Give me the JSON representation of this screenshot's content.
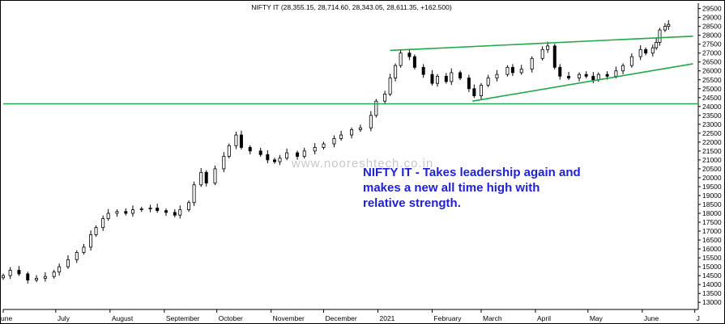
{
  "chart_data": {
    "type": "candlestick",
    "title": "NIFTY IT (28,355.15, 28,714.60, 28,343.05, 28,611.35, +162.500)",
    "watermark": "www.nooreshtech.co.in",
    "annotation_lines": [
      "NIFTY IT - Takes leadership again and",
      "makes a new all time high with",
      "relative strength."
    ],
    "annotation_color": "#1f1fd6",
    "trendline_color": "#22a84a",
    "candle_up_color": "#ffffff",
    "candle_down_color": "#000000",
    "ylim": [
      12600,
      29800
    ],
    "y_ticks": [
      "29500",
      "29000",
      "28500",
      "28000",
      "27500",
      "27000",
      "26500",
      "26000",
      "25500",
      "25000",
      "24500",
      "24000",
      "23500",
      "23000",
      "22500",
      "22000",
      "21500",
      "21000",
      "20500",
      "20000",
      "19500",
      "19000",
      "18500",
      "18000",
      "17500",
      "17000",
      "16500",
      "16000",
      "15500",
      "15000",
      "14500",
      "14000",
      "13500",
      "13000"
    ],
    "x_ticks": [
      "une",
      "July",
      "August",
      "September",
      "October",
      "November",
      "December",
      "2021",
      "February",
      "March",
      "April",
      "May",
      "June",
      "J"
    ],
    "horizontal_support": 24150,
    "upper_trendline": [
      [
        "2021-01-08",
        27150
      ],
      [
        "2021-06-30",
        27950
      ]
    ],
    "lower_trendline": [
      [
        "2021-02-24",
        24300
      ],
      [
        "2021-06-30",
        26400
      ]
    ],
    "series": [
      {
        "values": [
          [
            "2020-06-01",
            14500
          ],
          [
            "2020-06-05",
            14800
          ],
          [
            "2020-06-10",
            14600
          ],
          [
            "2020-06-15",
            14250
          ],
          [
            "2020-06-20",
            14350
          ],
          [
            "2020-06-25",
            14450
          ],
          [
            "2020-06-30",
            14700
          ],
          [
            "2020-07-03",
            15000
          ],
          [
            "2020-07-08",
            15400
          ],
          [
            "2020-07-13",
            15800
          ],
          [
            "2020-07-17",
            16100
          ],
          [
            "2020-07-21",
            16800
          ],
          [
            "2020-07-24",
            17200
          ],
          [
            "2020-07-28",
            17700
          ],
          [
            "2020-07-31",
            18000
          ],
          [
            "2020-08-05",
            18100
          ],
          [
            "2020-08-10",
            18000
          ],
          [
            "2020-08-14",
            18200
          ],
          [
            "2020-08-19",
            18250
          ],
          [
            "2020-08-24",
            18300
          ],
          [
            "2020-08-28",
            18150
          ],
          [
            "2020-09-02",
            18050
          ],
          [
            "2020-09-07",
            17900
          ],
          [
            "2020-09-10",
            18200
          ],
          [
            "2020-09-15",
            18600
          ],
          [
            "2020-09-18",
            19600
          ],
          [
            "2020-09-22",
            20300
          ],
          [
            "2020-09-25",
            19700
          ],
          [
            "2020-09-30",
            20500
          ],
          [
            "2020-10-05",
            21200
          ],
          [
            "2020-10-08",
            21800
          ],
          [
            "2020-10-12",
            22400
          ],
          [
            "2020-10-15",
            21700
          ],
          [
            "2020-10-20",
            21500
          ],
          [
            "2020-10-26",
            21300
          ],
          [
            "2020-10-30",
            21000
          ],
          [
            "2020-11-03",
            20900
          ],
          [
            "2020-11-06",
            21100
          ],
          [
            "2020-11-10",
            21400
          ],
          [
            "2020-11-16",
            21200
          ],
          [
            "2020-11-20",
            21500
          ],
          [
            "2020-11-26",
            21700
          ],
          [
            "2020-12-01",
            21900
          ],
          [
            "2020-12-07",
            22200
          ],
          [
            "2020-12-11",
            22400
          ],
          [
            "2020-12-17",
            22700
          ],
          [
            "2020-12-22",
            22800
          ],
          [
            "2020-12-28",
            23500
          ],
          [
            "2020-12-31",
            24300
          ],
          [
            "2021-01-05",
            24700
          ],
          [
            "2021-01-08",
            25600
          ],
          [
            "2021-01-11",
            26300
          ],
          [
            "2021-01-14",
            27000
          ],
          [
            "2021-01-19",
            26800
          ],
          [
            "2021-01-22",
            26200
          ],
          [
            "2021-01-27",
            25800
          ],
          [
            "2021-02-01",
            25300
          ],
          [
            "2021-02-04",
            25700
          ],
          [
            "2021-02-09",
            25400
          ],
          [
            "2021-02-12",
            25900
          ],
          [
            "2021-02-17",
            25600
          ],
          [
            "2021-02-22",
            25000
          ],
          [
            "2021-02-25",
            24600
          ],
          [
            "2021-03-01",
            25200
          ],
          [
            "2021-03-05",
            25600
          ],
          [
            "2021-03-10",
            25800
          ],
          [
            "2021-03-16",
            26200
          ],
          [
            "2021-03-19",
            25900
          ],
          [
            "2021-03-24",
            26100
          ],
          [
            "2021-03-30",
            26700
          ],
          [
            "2021-04-05",
            27200
          ],
          [
            "2021-04-08",
            27400
          ],
          [
            "2021-04-12",
            26200
          ],
          [
            "2021-04-15",
            25700
          ],
          [
            "2021-04-20",
            25600
          ],
          [
            "2021-04-26",
            25800
          ],
          [
            "2021-04-30",
            25700
          ],
          [
            "2021-05-04",
            25500
          ],
          [
            "2021-05-07",
            25800
          ],
          [
            "2021-05-12",
            25700
          ],
          [
            "2021-05-17",
            26000
          ],
          [
            "2021-05-21",
            26300
          ],
          [
            "2021-05-26",
            26800
          ],
          [
            "2021-05-31",
            27200
          ],
          [
            "2021-06-03",
            27000
          ],
          [
            "2021-06-07",
            27300
          ],
          [
            "2021-06-09",
            27600
          ],
          [
            "2021-06-11",
            28300
          ],
          [
            "2021-06-14",
            28500
          ],
          [
            "2021-06-16",
            28611.35
          ]
        ]
      }
    ]
  }
}
